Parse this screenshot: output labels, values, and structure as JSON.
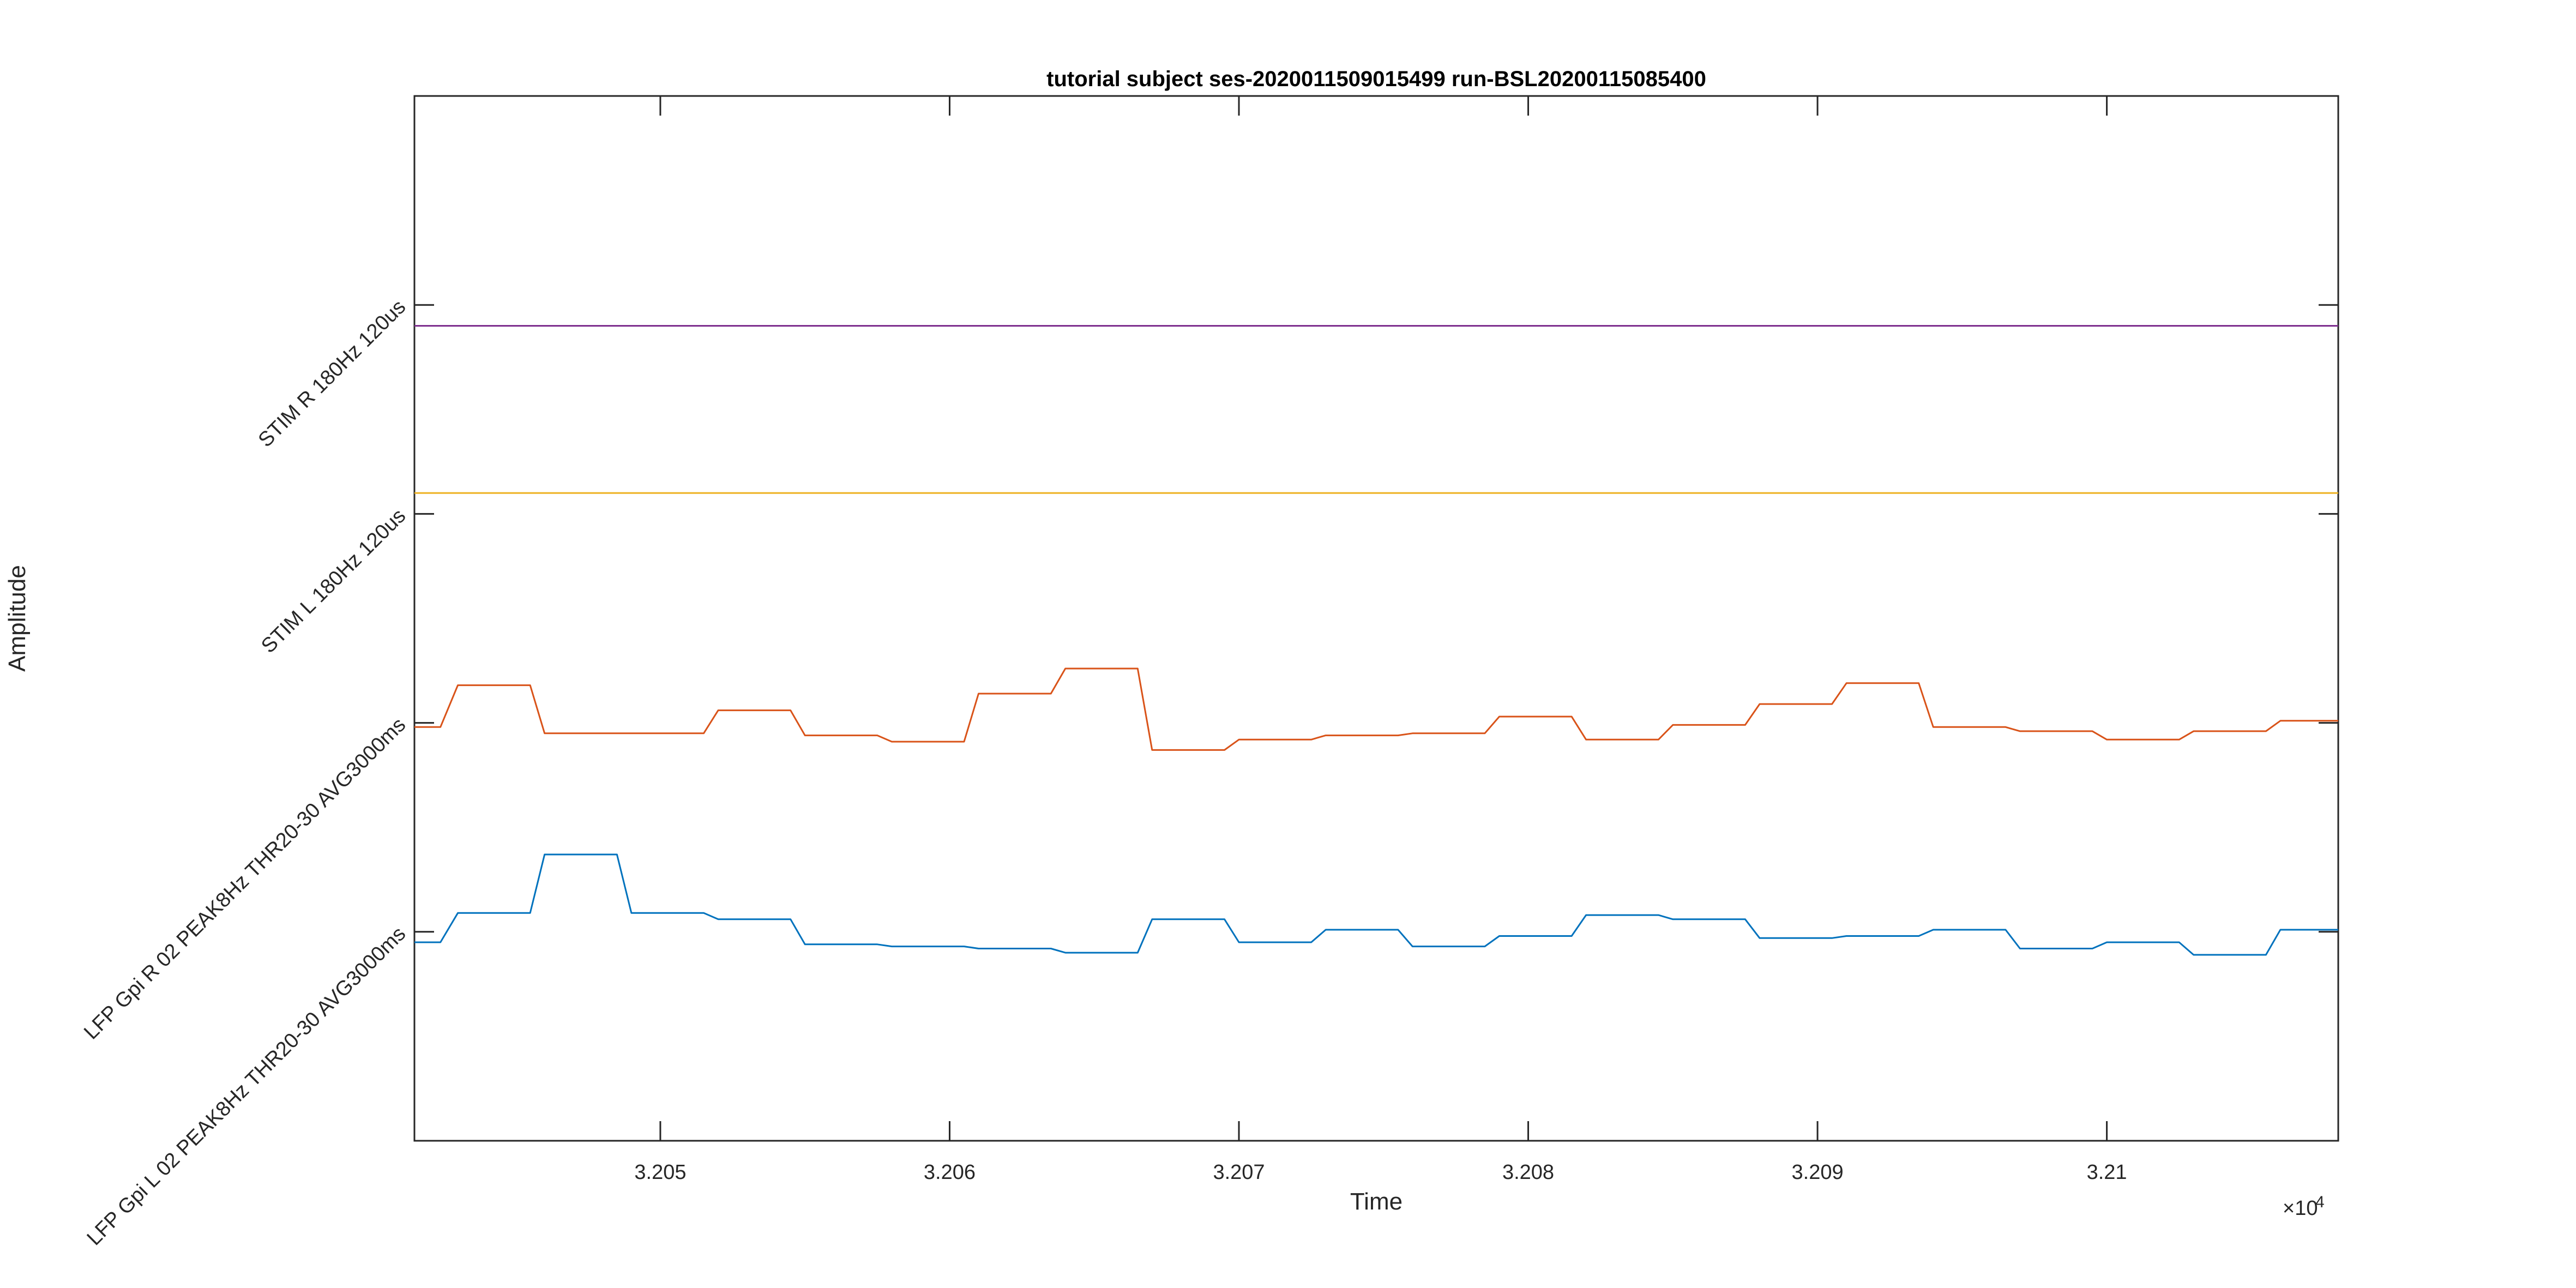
{
  "chart_data": {
    "type": "line",
    "title": "tutorial subject ses-2020011509015499 run-BSL20200115085400",
    "xlabel": "Time",
    "ylabel": "Amplitude",
    "x_exponent_label": "×10",
    "x_exponent_power": "4",
    "xlim": [
      32041.5,
      32108.0
    ],
    "x_ticks": [
      32050,
      32060,
      32070,
      32080,
      32090,
      32100
    ],
    "x_tick_labels": [
      "3.205",
      "3.206",
      "3.207",
      "3.208",
      "3.209",
      "3.21"
    ],
    "ylim": [
      -1,
      4
    ],
    "y_ticks": [
      0,
      1,
      2,
      3
    ],
    "y_tick_labels": [
      "LFP Gpi L 02 PEAK8Hz THR20-30 AVG3000ms",
      "LFP Gpi R 02 PEAK8Hz THR20-30 AVG3000ms",
      "STIM L 180Hz 120us",
      "STIM R 180Hz 120us"
    ],
    "grid": false,
    "series": [
      {
        "color": "#0072BD",
        "x": [
          32041.5,
          32042.4,
          32043.0,
          32045.5,
          32046.0,
          32048.5,
          32049.0,
          32051.5,
          32052.0,
          32054.5,
          32055.0,
          32057.5,
          32058.0,
          32060.5,
          32061.0,
          32063.5,
          32064.0,
          32066.5,
          32067.0,
          32069.5,
          32070.0,
          32072.5,
          32073.0,
          32075.5,
          32076.0,
          32078.5,
          32079.0,
          32081.5,
          32082.0,
          32084.5,
          32085.0,
          32087.5,
          32088.0,
          32090.5,
          32091.0,
          32093.5,
          32094.0,
          32096.5,
          32097.0,
          32099.5,
          32100.0,
          32102.5,
          32103.0,
          32105.5,
          32106.0,
          32108.0
        ],
        "y": [
          -0.05,
          -0.05,
          0.09,
          0.09,
          0.37,
          0.37,
          0.09,
          0.09,
          0.06,
          0.06,
          -0.06,
          -0.06,
          -0.07,
          -0.07,
          -0.08,
          -0.08,
          -0.1,
          -0.1,
          0.06,
          0.06,
          -0.05,
          -0.05,
          0.01,
          0.01,
          -0.07,
          -0.07,
          -0.02,
          -0.02,
          0.08,
          0.08,
          0.06,
          0.06,
          -0.03,
          -0.03,
          -0.02,
          -0.02,
          0.01,
          0.01,
          -0.08,
          -0.08,
          -0.05,
          -0.05,
          -0.11,
          -0.11,
          0.01,
          0.01
        ]
      },
      {
        "color": "#D95319",
        "x": [
          32041.5,
          32042.4,
          32043.0,
          32045.5,
          32046.0,
          32048.5,
          32049.0,
          32051.5,
          32052.0,
          32054.5,
          32055.0,
          32057.5,
          32058.0,
          32060.5,
          32061.0,
          32063.5,
          32064.0,
          32066.5,
          32067.0,
          32069.5,
          32070.0,
          32072.5,
          32073.0,
          32075.5,
          32076.0,
          32078.5,
          32079.0,
          32081.5,
          32082.0,
          32084.5,
          32085.0,
          32087.5,
          32088.0,
          32090.5,
          32091.0,
          32093.5,
          32094.0,
          32096.5,
          32097.0,
          32099.5,
          32100.0,
          32102.5,
          32103.0,
          32105.5,
          32106.0,
          32108.0
        ],
        "y": [
          0.98,
          0.98,
          1.18,
          1.18,
          0.95,
          0.95,
          0.95,
          0.95,
          1.06,
          1.06,
          0.94,
          0.94,
          0.91,
          0.91,
          1.14,
          1.14,
          1.26,
          1.26,
          0.87,
          0.87,
          0.92,
          0.92,
          0.94,
          0.94,
          0.95,
          0.95,
          1.03,
          1.03,
          0.92,
          0.92,
          0.99,
          0.99,
          1.09,
          1.09,
          1.19,
          1.19,
          0.98,
          0.98,
          0.96,
          0.96,
          0.92,
          0.92,
          0.96,
          0.96,
          1.01,
          1.01
        ]
      },
      {
        "color": "#EDB120",
        "x": [
          32041.5,
          32108.0
        ],
        "y": [
          2.1,
          2.1
        ]
      },
      {
        "color": "#7E2F8E",
        "x": [
          32041.5,
          32108.0
        ],
        "y": [
          2.9,
          2.9
        ]
      }
    ]
  }
}
